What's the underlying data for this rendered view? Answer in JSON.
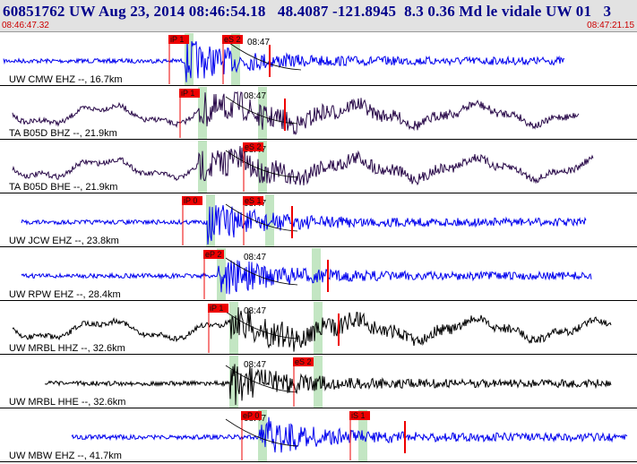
{
  "header": {
    "title": "60851762 UW Aug 23, 2014 08:46:54.18   48.4087 -121.8945  8.3 0.36 Md le vidale UW 01   3",
    "start_time": "08:46:47.32",
    "end_time": "08:47:21.15"
  },
  "colors": {
    "header_bg": "#e2e2e2",
    "title": "#00008b",
    "time_text": "#cc0000",
    "blue_trace": "#0000ee",
    "dark_trace": "#2a0a4a",
    "black_trace": "#000000",
    "pick_red": "#ee0000",
    "window_green": "#c3e6c3"
  },
  "minute_mark": "08:47",
  "traces": [
    {
      "label": "UW CMW EHZ --, 16.7km",
      "color": "#0000ee",
      "p_pick": "iP 1",
      "s_pick": "eS 2",
      "style": "noise"
    },
    {
      "label": "TA B05D BHZ --, 21.9km",
      "color": "#2a0a4a",
      "p_pick": "iP 1",
      "s_pick": "",
      "style": "wave"
    },
    {
      "label": "TA B05D BHE --, 21.9km",
      "color": "#2a0a4a",
      "p_pick": "",
      "s_pick": "eS 2",
      "style": "wave"
    },
    {
      "label": "UW JCW EHZ --, 23.8km",
      "color": "#0000ee",
      "p_pick": "iP 0",
      "s_pick": "eS 1",
      "style": "noise"
    },
    {
      "label": "UW RPW EHZ --, 28.4km",
      "color": "#0000ee",
      "p_pick": "eP 2",
      "s_pick": "",
      "style": "noise"
    },
    {
      "label": "UW MRBL HHZ --, 32.6km",
      "color": "#000000",
      "p_pick": "iP 1",
      "s_pick": "",
      "style": "wave"
    },
    {
      "label": "UW MRBL HHE --, 32.6km",
      "color": "#000000",
      "p_pick": "",
      "s_pick": "eS 2",
      "style": "noise"
    },
    {
      "label": "UW MBW EHZ --, 41.7km",
      "color": "#0000ee",
      "p_pick": "eP 0",
      "s_pick": "iS 1",
      "style": "noise"
    }
  ]
}
